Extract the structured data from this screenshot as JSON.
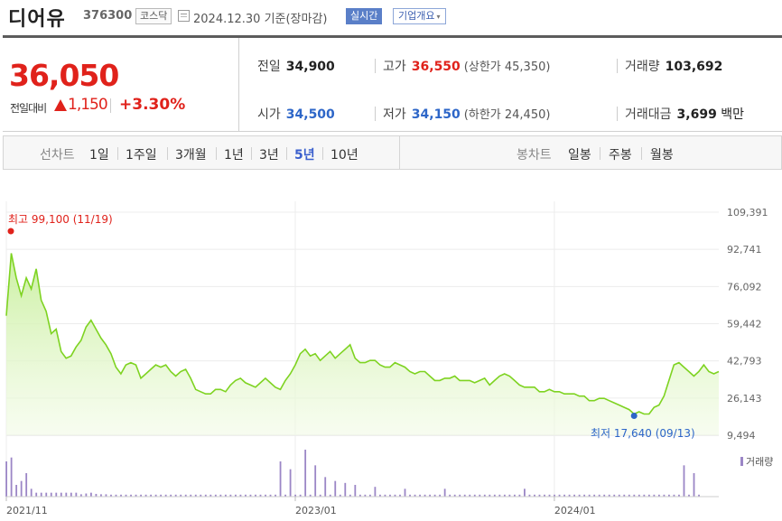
{
  "header": {
    "name": "디어유",
    "code": "376300",
    "market": "코스닥",
    "date": "2024.12.30 기준(장마감)",
    "realtime": "실시간",
    "overview": "기업개요",
    "overview_caret": "▾"
  },
  "summary": {
    "price": "36,050",
    "change_label": "전일대비",
    "change_value": "1,150",
    "change_pct": "+3.30%",
    "prev_close_label": "전일",
    "prev_close": "34,900",
    "high_label": "고가",
    "high": "36,550",
    "upper_limit": "(상한가 45,350)",
    "volume_label": "거래량",
    "volume": "103,692",
    "open_label": "시가",
    "open": "34,500",
    "low_label": "저가",
    "low": "34,150",
    "lower_limit": "(하한가 24,450)",
    "amount_label": "거래대금",
    "amount": "3,699",
    "amount_unit": "백만"
  },
  "tabs": {
    "line_label": "선차트",
    "periods": [
      "1일",
      "1주일",
      "3개월",
      "1년",
      "3년",
      "5년",
      "10년"
    ],
    "selected_period": "5년",
    "candle_label": "봉차트",
    "candles": [
      "일봉",
      "주봉",
      "월봉"
    ]
  },
  "colors": {
    "rise": "#e0221b",
    "fall": "#2d66c8",
    "line": "#7ed321",
    "volume": "#9b86c6"
  },
  "chart_data": {
    "type": "area",
    "y_ticks": [
      109391,
      92741,
      76092,
      59442,
      42793,
      26143,
      9494
    ],
    "ylim": [
      9494,
      109391
    ],
    "x_ticks": [
      "2021/11",
      "2023/01",
      "2024/01"
    ],
    "grid": true,
    "high_label": "최고 99,100 (11/19)",
    "low_label": "최저 17,640 (09/13)",
    "volume_legend": "거래량",
    "price_series": [
      63000,
      91000,
      80000,
      72000,
      80000,
      75000,
      84000,
      70000,
      65000,
      55000,
      57000,
      47000,
      44000,
      45000,
      49000,
      52000,
      58000,
      61000,
      57000,
      53000,
      50000,
      46000,
      40000,
      37000,
      41000,
      42000,
      41000,
      35000,
      37000,
      39000,
      41000,
      40000,
      41000,
      38000,
      36000,
      38000,
      39000,
      35000,
      30000,
      29000,
      28000,
      28000,
      30000,
      30000,
      29000,
      32000,
      34000,
      35000,
      33000,
      32000,
      31000,
      33000,
      35000,
      33000,
      31000,
      30000,
      34000,
      37000,
      41000,
      46000,
      48000,
      45000,
      46000,
      43000,
      45000,
      47000,
      44000,
      46000,
      48000,
      50000,
      44000,
      42000,
      42000,
      43000,
      43000,
      41000,
      40000,
      40000,
      42000,
      41000,
      40000,
      38000,
      37000,
      38000,
      38000,
      36000,
      34000,
      34000,
      35000,
      35000,
      36000,
      34000,
      34000,
      34000,
      33000,
      34000,
      35000,
      32000,
      34000,
      36000,
      37000,
      36000,
      34000,
      32000,
      31000,
      31000,
      31000,
      29000,
      29000,
      30000,
      29000,
      29000,
      28000,
      28000,
      28000,
      27000,
      27000,
      25000,
      25000,
      26000,
      26000,
      25000,
      24000,
      23000,
      22000,
      21000,
      19000,
      20000,
      19000,
      19000,
      22000,
      23000,
      27000,
      34000,
      41000,
      42000,
      40000,
      38000,
      36000,
      38000,
      41000,
      38000,
      37000,
      38000
    ],
    "volume_series": [
      9,
      10,
      3,
      1,
      6,
      2,
      1,
      1,
      1,
      1,
      1,
      1,
      1,
      1,
      1,
      0.6,
      0.8,
      1,
      0.7,
      0.6,
      0.6,
      0.5,
      0.5,
      0.5,
      0.5,
      0.5,
      0.5,
      0.5,
      0.5,
      0.5,
      0.5,
      0.5,
      0.5,
      0.5,
      0.5,
      0.5,
      0.5,
      0.5,
      0.5,
      0.5,
      0.5,
      0.5,
      0.5,
      0.5,
      0.5,
      0.5,
      0.5,
      0.5,
      0.5,
      0.5,
      0.5,
      0.5,
      0.5,
      0.5,
      0.5,
      0.5,
      0.5,
      0.5,
      0.5,
      0.5,
      0.5,
      0.5,
      0.5,
      0.5,
      0.5,
      0.5,
      0.5,
      0.5,
      0.5,
      0.5,
      0.5,
      0.5,
      0.5,
      0.5,
      0.5,
      0.5,
      0.5,
      0.5,
      0.5,
      0.5,
      0.5,
      0.5,
      0.5,
      0.5,
      0.5,
      0.5,
      0.5,
      0.5,
      0.5,
      0.5,
      0.5,
      0.5,
      0.5,
      0.5,
      0.5,
      0.5,
      0.5,
      0.5,
      0.5,
      0.5,
      0.5,
      0.5,
      0.5,
      0.5,
      0.5,
      0.5,
      0.5,
      0.5,
      0.5,
      0.5,
      0.5,
      0.5,
      0.5,
      0.5,
      0.5,
      0.5,
      0.5,
      0.5,
      0.5,
      0.5,
      0.5,
      0.5,
      0.5,
      0.5,
      0.5,
      0.5,
      0.5,
      0.5,
      0.5,
      0.5,
      0.5,
      0.5,
      0.5,
      0.5,
      0.5,
      0.5,
      0.5,
      0.5,
      0.5,
      0.5
    ],
    "volume_peaks": [
      {
        "i": 1,
        "v": 10
      },
      {
        "i": 3,
        "v": 4
      },
      {
        "i": 5,
        "v": 2
      },
      {
        "i": 55,
        "v": 9
      },
      {
        "i": 57,
        "v": 7
      },
      {
        "i": 60,
        "v": 12
      },
      {
        "i": 62,
        "v": 8
      },
      {
        "i": 64,
        "v": 5
      },
      {
        "i": 66,
        "v": 4
      },
      {
        "i": 68,
        "v": 3.5
      },
      {
        "i": 70,
        "v": 3
      },
      {
        "i": 74,
        "v": 2.5
      },
      {
        "i": 80,
        "v": 2
      },
      {
        "i": 88,
        "v": 2
      },
      {
        "i": 104,
        "v": 2
      },
      {
        "i": 136,
        "v": 8
      },
      {
        "i": 138,
        "v": 6
      },
      {
        "i": 140,
        "v": 4
      },
      {
        "i": 142,
        "v": 3
      },
      {
        "i": 144,
        "v": 2
      }
    ]
  }
}
